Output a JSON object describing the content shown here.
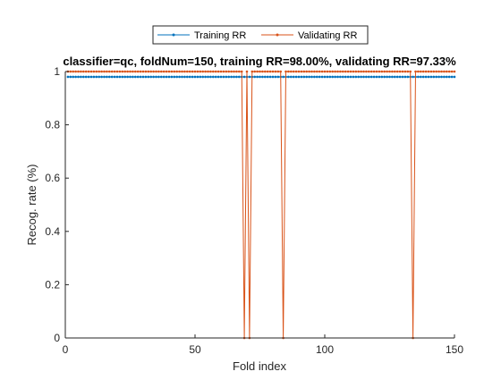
{
  "chart_data": {
    "type": "line",
    "title": "classifier=qc, foldNum=150, training RR=98.00%, validating RR=97.33%",
    "xlabel": "Fold index",
    "ylabel": "Recog. rate (%)",
    "xlim": [
      0,
      150
    ],
    "ylim": [
      0,
      1
    ],
    "xticks": [
      0,
      50,
      100,
      150
    ],
    "yticks": [
      0,
      0.2,
      0.4,
      0.6,
      0.8,
      1
    ],
    "xtick_labels": [
      "0",
      "50",
      "100",
      "150"
    ],
    "ytick_labels": [
      "0",
      "0.2",
      "0.4",
      "0.6",
      "0.8",
      "1"
    ],
    "grid": false,
    "legend_position": "top-center",
    "series": [
      {
        "name": "Training RR",
        "color": "#0072BD",
        "marker": "dot",
        "constant_value": 0.98,
        "x_range": [
          1,
          150
        ]
      },
      {
        "name": "Validating RR",
        "color": "#D95319",
        "marker": "dot",
        "default_value": 1,
        "x_range": [
          1,
          150
        ],
        "exceptions": [
          {
            "x": 69,
            "y": 0
          },
          {
            "x": 71,
            "y": 0
          },
          {
            "x": 84,
            "y": 0
          },
          {
            "x": 134,
            "y": 0
          }
        ]
      }
    ]
  }
}
